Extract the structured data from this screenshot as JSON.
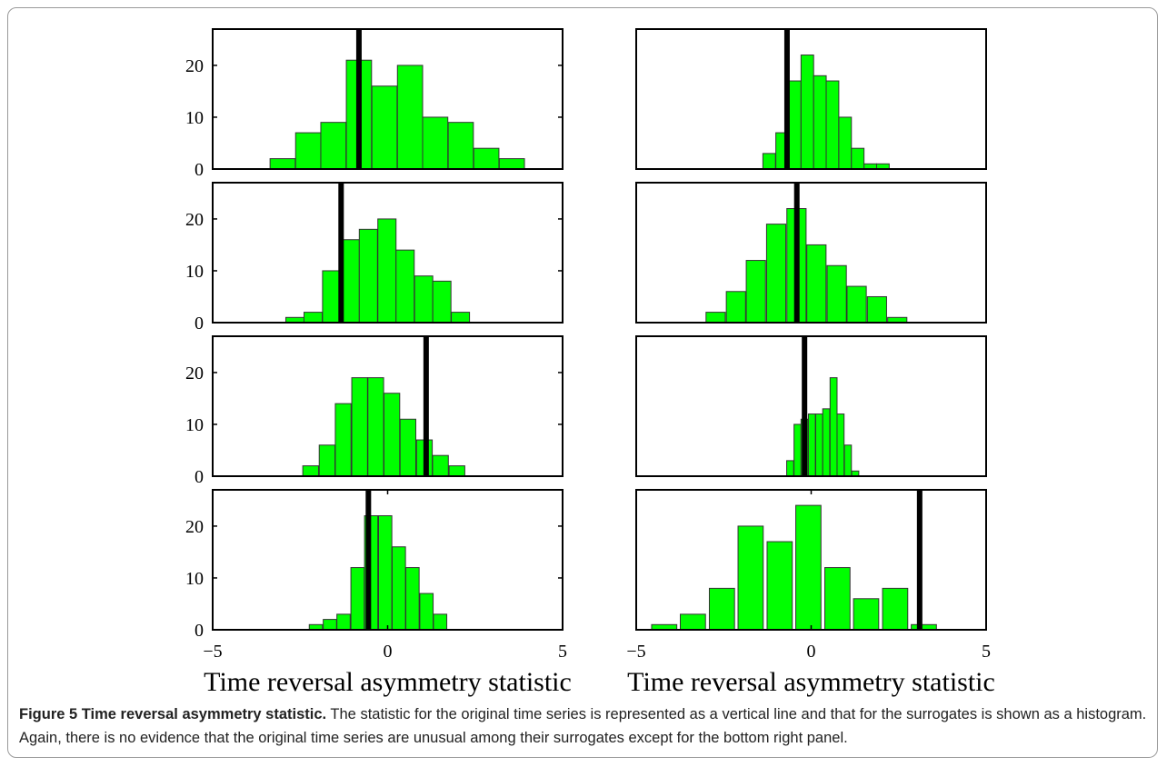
{
  "caption": {
    "title": "Figure 5 Time reversal asymmetry statistic.",
    "text": "The statistic for the original time series is represented as a vertical line and that for the surrogates is shown as a histogram. Again, there is no evidence that the original time series are unusual among their surrogates except for the bottom right panel."
  },
  "colors": {
    "bar_fill": "#00ff00",
    "bar_edge": "#333333",
    "line": "#000000",
    "axes": "#000000"
  },
  "chart_data": [
    {
      "type": "bar",
      "panel": "row 1, left",
      "xlim": [
        -5,
        5
      ],
      "ylim": [
        0,
        27
      ],
      "yticks": [
        0,
        10,
        20
      ],
      "xticks": [],
      "bin_width": 0.72,
      "bins": [
        {
          "x": -3.0,
          "y": 2
        },
        {
          "x": -2.27,
          "y": 7
        },
        {
          "x": -1.55,
          "y": 9
        },
        {
          "x": -0.82,
          "y": 21
        },
        {
          "x": -0.09,
          "y": 16
        },
        {
          "x": 0.64,
          "y": 20
        },
        {
          "x": 1.36,
          "y": 10
        },
        {
          "x": 2.09,
          "y": 9
        },
        {
          "x": 2.82,
          "y": 4
        },
        {
          "x": 3.55,
          "y": 2
        }
      ],
      "original_value": -0.82
    },
    {
      "type": "bar",
      "panel": "row 1, right",
      "xlim": [
        -5,
        5
      ],
      "ylim": [
        0,
        27
      ],
      "yticks": [],
      "xticks": [],
      "bin_width": 0.36,
      "bins": [
        {
          "x": -1.2,
          "y": 3
        },
        {
          "x": -0.83,
          "y": 7
        },
        {
          "x": -0.47,
          "y": 17
        },
        {
          "x": -0.11,
          "y": 22
        },
        {
          "x": 0.25,
          "y": 18
        },
        {
          "x": 0.61,
          "y": 17
        },
        {
          "x": 0.97,
          "y": 10
        },
        {
          "x": 1.33,
          "y": 4
        },
        {
          "x": 1.69,
          "y": 1
        },
        {
          "x": 2.05,
          "y": 1
        }
      ],
      "original_value": -0.69
    },
    {
      "type": "bar",
      "panel": "row 2, left",
      "xlim": [
        -5,
        5
      ],
      "ylim": [
        0,
        27
      ],
      "yticks": [
        0,
        10,
        20
      ],
      "xticks": [],
      "bin_width": 0.52,
      "bins": [
        {
          "x": -2.65,
          "y": 1
        },
        {
          "x": -2.13,
          "y": 2
        },
        {
          "x": -1.6,
          "y": 10
        },
        {
          "x": -1.07,
          "y": 16
        },
        {
          "x": -0.55,
          "y": 18
        },
        {
          "x": -0.02,
          "y": 20
        },
        {
          "x": 0.5,
          "y": 14
        },
        {
          "x": 1.03,
          "y": 9
        },
        {
          "x": 1.55,
          "y": 8
        },
        {
          "x": 2.08,
          "y": 2
        }
      ],
      "original_value": -1.33
    },
    {
      "type": "bar",
      "panel": "row 2, right",
      "xlim": [
        -5,
        5
      ],
      "ylim": [
        0,
        27
      ],
      "yticks": [],
      "xticks": [],
      "bin_width": 0.55,
      "bins": [
        {
          "x": -2.73,
          "y": 2
        },
        {
          "x": -2.15,
          "y": 6
        },
        {
          "x": -1.58,
          "y": 12
        },
        {
          "x": -1.0,
          "y": 19
        },
        {
          "x": -0.42,
          "y": 22
        },
        {
          "x": 0.15,
          "y": 15
        },
        {
          "x": 0.73,
          "y": 11
        },
        {
          "x": 1.3,
          "y": 7
        },
        {
          "x": 1.88,
          "y": 5
        },
        {
          "x": 2.46,
          "y": 1
        }
      ],
      "original_value": -0.41
    },
    {
      "type": "bar",
      "panel": "row 3, left",
      "xlim": [
        -5,
        5
      ],
      "ylim": [
        0,
        27
      ],
      "yticks": [
        0,
        10,
        20
      ],
      "xticks": [],
      "bin_width": 0.45,
      "bins": [
        {
          "x": -2.2,
          "y": 2
        },
        {
          "x": -1.73,
          "y": 6
        },
        {
          "x": -1.27,
          "y": 14
        },
        {
          "x": -0.8,
          "y": 19
        },
        {
          "x": -0.34,
          "y": 19
        },
        {
          "x": 0.12,
          "y": 16
        },
        {
          "x": 0.58,
          "y": 11
        },
        {
          "x": 1.05,
          "y": 7
        },
        {
          "x": 1.51,
          "y": 4
        },
        {
          "x": 1.98,
          "y": 2
        }
      ],
      "original_value": 1.1
    },
    {
      "type": "bar",
      "panel": "row 3, right",
      "xlim": [
        -5,
        5
      ],
      "ylim": [
        0,
        27
      ],
      "yticks": [],
      "xticks": [],
      "bin_width": 0.2,
      "bins": [
        {
          "x": -0.6,
          "y": 3
        },
        {
          "x": -0.39,
          "y": 10
        },
        {
          "x": -0.19,
          "y": 11
        },
        {
          "x": 0.02,
          "y": 12
        },
        {
          "x": 0.23,
          "y": 12
        },
        {
          "x": 0.43,
          "y": 13
        },
        {
          "x": 0.64,
          "y": 19
        },
        {
          "x": 0.84,
          "y": 12
        },
        {
          "x": 1.05,
          "y": 6
        },
        {
          "x": 1.26,
          "y": 1
        }
      ],
      "original_value": -0.19
    },
    {
      "type": "bar",
      "panel": "row 4, left",
      "xlim": [
        -5,
        5
      ],
      "ylim": [
        0,
        27
      ],
      "yticks": [
        0,
        10,
        20
      ],
      "xticks": [
        -5,
        0,
        5
      ],
      "xlabel": "Time reversal asymmetry statistic",
      "bin_width": 0.38,
      "bins": [
        {
          "x": -2.05,
          "y": 1
        },
        {
          "x": -1.65,
          "y": 2
        },
        {
          "x": -1.26,
          "y": 3
        },
        {
          "x": -0.86,
          "y": 12
        },
        {
          "x": -0.47,
          "y": 22
        },
        {
          "x": -0.07,
          "y": 22
        },
        {
          "x": 0.32,
          "y": 16
        },
        {
          "x": 0.71,
          "y": 12
        },
        {
          "x": 1.11,
          "y": 7
        },
        {
          "x": 1.5,
          "y": 3
        }
      ],
      "original_value": -0.55
    },
    {
      "type": "bar",
      "panel": "row 4, right",
      "xlim": [
        -5,
        5
      ],
      "ylim": [
        0,
        27
      ],
      "yticks": [],
      "xticks": [
        -5,
        0,
        5
      ],
      "xlabel": "Time reversal asymmetry statistic",
      "bin_width": 0.72,
      "bins": [
        {
          "x": -4.2,
          "y": 1
        },
        {
          "x": -3.38,
          "y": 3
        },
        {
          "x": -2.55,
          "y": 8
        },
        {
          "x": -1.73,
          "y": 20
        },
        {
          "x": -0.9,
          "y": 17
        },
        {
          "x": -0.08,
          "y": 24
        },
        {
          "x": 0.75,
          "y": 12
        },
        {
          "x": 1.57,
          "y": 6
        },
        {
          "x": 2.4,
          "y": 8
        },
        {
          "x": 3.22,
          "y": 1
        }
      ],
      "original_value": 3.1
    }
  ]
}
